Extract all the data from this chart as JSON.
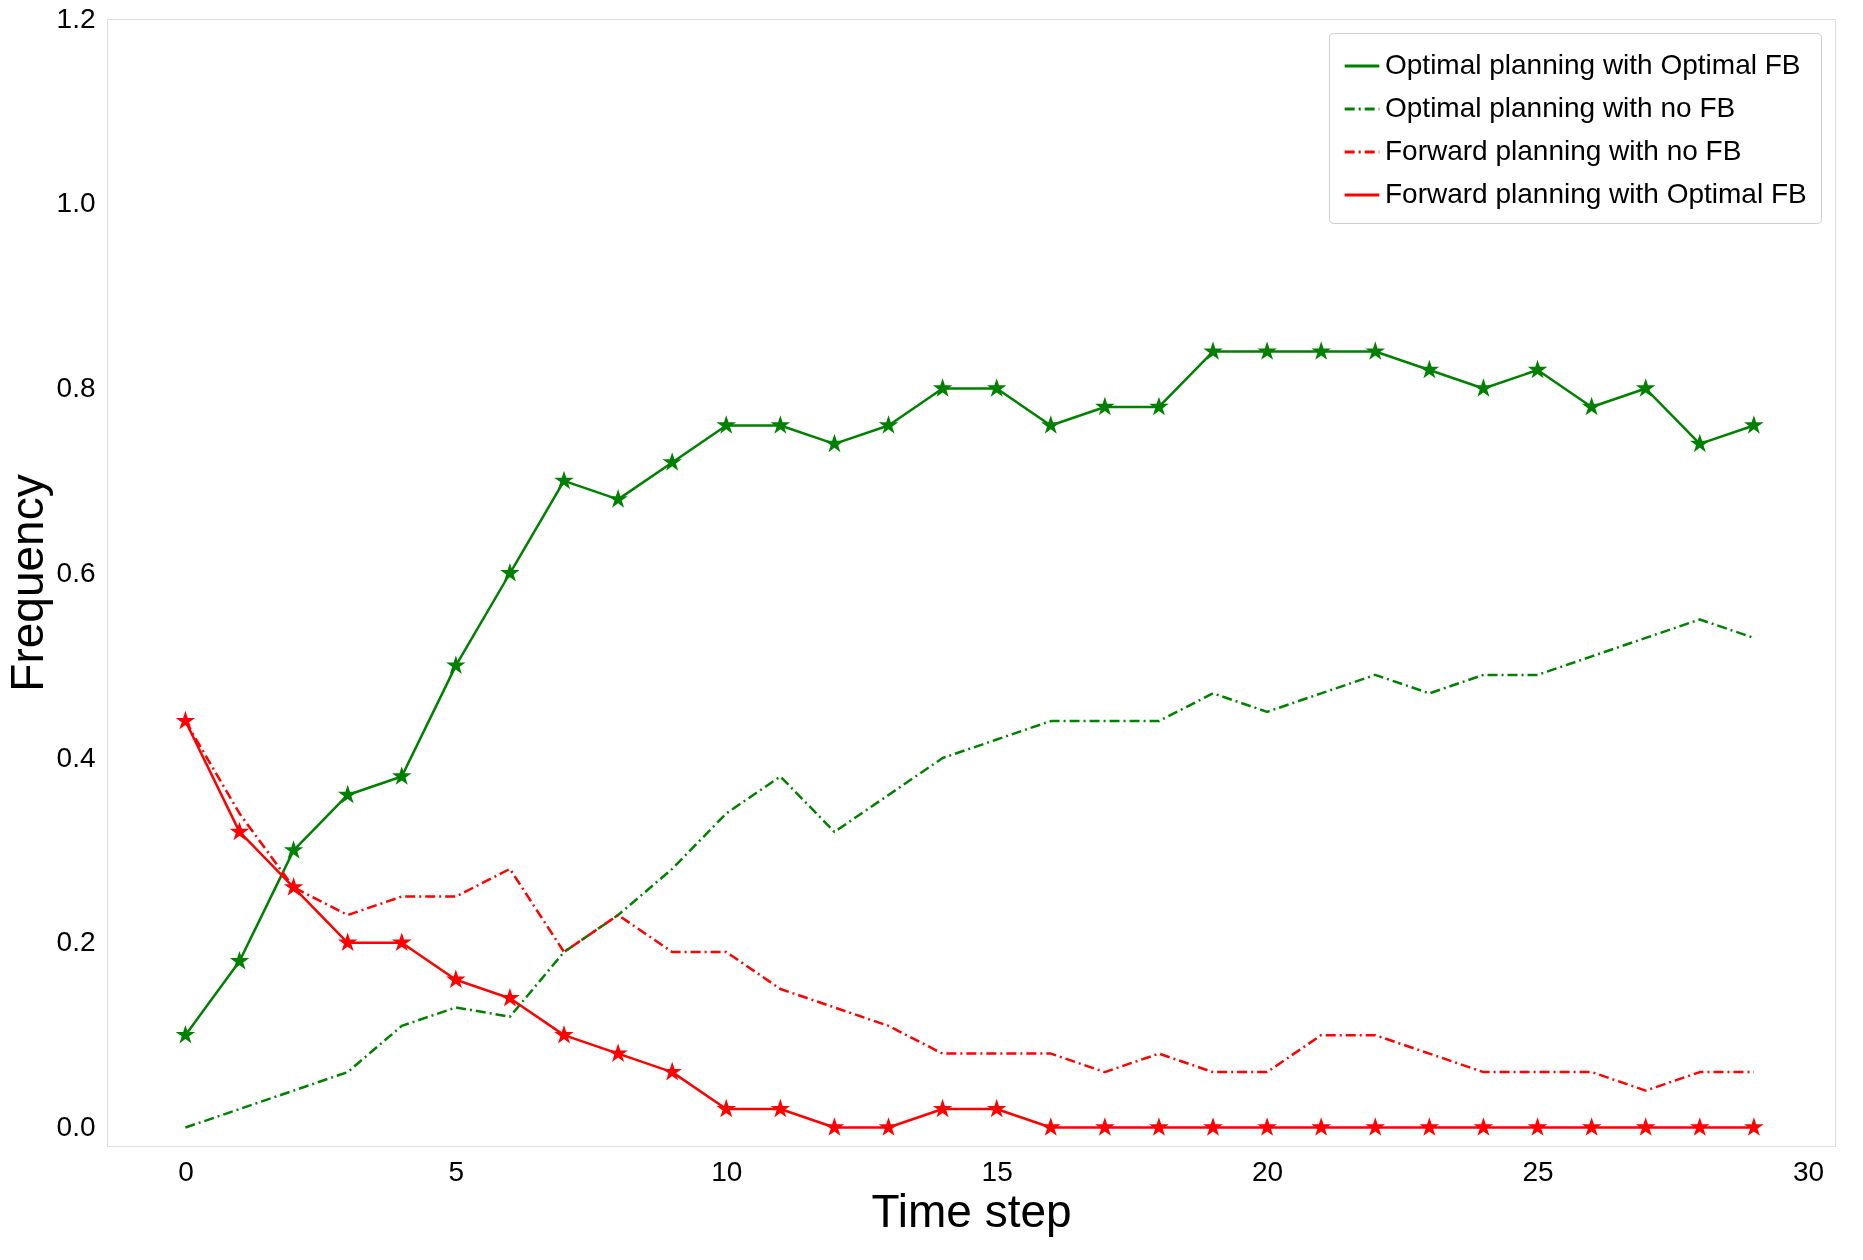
{
  "chart_data": {
    "type": "line",
    "xlabel": "Time step",
    "ylabel": "Frequency",
    "x": [
      0,
      1,
      2,
      3,
      4,
      5,
      6,
      7,
      8,
      9,
      10,
      11,
      12,
      13,
      14,
      15,
      16,
      17,
      18,
      19,
      20,
      21,
      22,
      23,
      24,
      25,
      26,
      27,
      28,
      29
    ],
    "series": [
      {
        "name": "Optimal planning with Optimal FB",
        "color": "#008000",
        "marker": "star",
        "line_style": "solid",
        "values": [
          0.1,
          0.18,
          0.3,
          0.36,
          0.38,
          0.5,
          0.6,
          0.7,
          0.68,
          0.72,
          0.76,
          0.76,
          0.74,
          0.76,
          0.8,
          0.8,
          0.76,
          0.78,
          0.78,
          0.84,
          0.84,
          0.84,
          0.84,
          0.82,
          0.8,
          0.82,
          0.78,
          0.8,
          0.74,
          0.76
        ]
      },
      {
        "name": "Optimal planning with no FB",
        "color": "#008000",
        "marker": "none",
        "line_style": "dashdot",
        "values": [
          0.0,
          0.02,
          0.04,
          0.06,
          0.11,
          0.13,
          0.12,
          0.19,
          0.23,
          0.28,
          0.34,
          0.38,
          0.32,
          0.36,
          0.4,
          0.42,
          0.44,
          0.44,
          0.44,
          0.47,
          0.45,
          0.47,
          0.49,
          0.47,
          0.49,
          0.49,
          0.51,
          0.53,
          0.55,
          0.53
        ]
      },
      {
        "name": "Forward planning with no FB",
        "color": "#ff0000",
        "marker": "none",
        "line_style": "dashdot",
        "values": [
          0.44,
          0.34,
          0.26,
          0.23,
          0.25,
          0.25,
          0.28,
          0.19,
          0.23,
          0.19,
          0.19,
          0.15,
          0.13,
          0.11,
          0.08,
          0.08,
          0.08,
          0.06,
          0.08,
          0.06,
          0.06,
          0.1,
          0.1,
          0.08,
          0.06,
          0.06,
          0.06,
          0.04,
          0.06,
          0.06
        ]
      },
      {
        "name": "Forward planning with Optimal FB",
        "color": "#ff0000",
        "marker": "star",
        "line_style": "solid",
        "values": [
          0.44,
          0.32,
          0.26,
          0.2,
          0.2,
          0.16,
          0.14,
          0.1,
          0.08,
          0.06,
          0.02,
          0.02,
          0.0,
          0.0,
          0.02,
          0.02,
          0.0,
          0.0,
          0.0,
          0.0,
          0.0,
          0.0,
          0.0,
          0.0,
          0.0,
          0.0,
          0.0,
          0.0,
          0.0,
          0.0
        ]
      }
    ],
    "xlim": [
      -1.45,
      30.5
    ],
    "xticks": [
      0,
      5,
      10,
      15,
      20,
      25,
      30
    ],
    "ylim": [
      -0.02,
      1.2
    ],
    "yticks": [
      {
        "value": 0,
        "label": "0.0"
      },
      {
        "value": 0.2,
        "label": "0.2"
      },
      {
        "value": 0.4,
        "label": "0.4"
      },
      {
        "value": 0.6,
        "label": "0.6"
      },
      {
        "value": 0.8,
        "label": "0.8"
      },
      {
        "value": 1.0,
        "label": "1.0"
      },
      {
        "value": 1.2,
        "label": "1.2"
      }
    ],
    "grid": false,
    "legend": "top right"
  }
}
